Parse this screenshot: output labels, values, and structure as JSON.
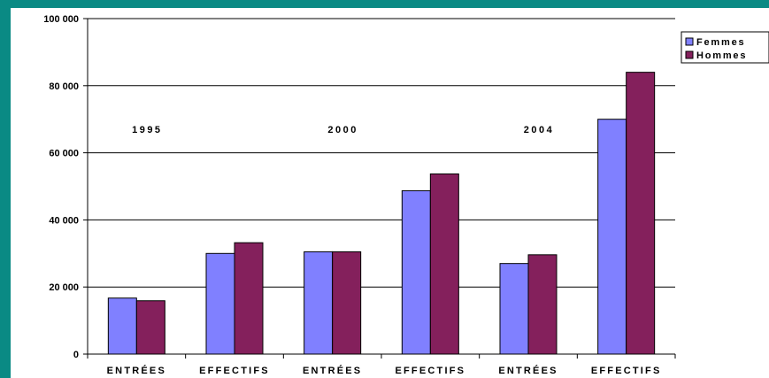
{
  "chart_data": {
    "type": "bar",
    "categories": [
      "ENTRÉES",
      "EFFECTIFS",
      "ENTRÉES",
      "EFFECTIFS",
      "ENTRÉES",
      "EFFECTIFS"
    ],
    "year_labels": [
      "1995",
      "2000",
      "2004"
    ],
    "series": [
      {
        "name": "Femmes",
        "color": "#8080ff",
        "values": [
          16700,
          30000,
          30500,
          48700,
          27000,
          70000
        ]
      },
      {
        "name": "Hommes",
        "color": "#84205c",
        "values": [
          15900,
          33200,
          30500,
          53700,
          29600,
          84000
        ]
      }
    ],
    "ylim": [
      0,
      100000
    ],
    "yticks": [
      0,
      20000,
      40000,
      60000,
      80000,
      100000
    ],
    "ytick_labels": [
      "0",
      "20 000",
      "40 000",
      "60 000",
      "80 000",
      "100 000"
    ],
    "grid": true,
    "legend": "top-right"
  }
}
